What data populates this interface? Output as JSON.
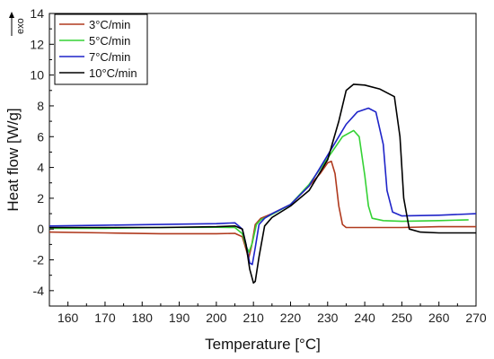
{
  "chart_data": {
    "type": "line",
    "title": "",
    "xlabel": "Temperature [°C]",
    "ylabel": "Heat flow [W/g]",
    "exo_label": "exo",
    "xlim": [
      155,
      270
    ],
    "ylim": [
      -5,
      14
    ],
    "x_ticks": [
      160,
      170,
      180,
      190,
      200,
      210,
      220,
      230,
      240,
      250,
      260,
      270
    ],
    "y_ticks": [
      -4,
      -2,
      0,
      2,
      4,
      6,
      8,
      10,
      12,
      14
    ],
    "grid": false,
    "legend_position": "top-left",
    "series": [
      {
        "name": "3°C/min",
        "color": "#b03a1e",
        "points": [
          [
            155,
            -0.2
          ],
          [
            170,
            -0.25
          ],
          [
            185,
            -0.3
          ],
          [
            200,
            -0.3
          ],
          [
            205,
            -0.28
          ],
          [
            207,
            -0.5
          ],
          [
            208,
            -1.3
          ],
          [
            208.7,
            -1.9
          ],
          [
            209.5,
            -1.1
          ],
          [
            210.5,
            0.3
          ],
          [
            212,
            0.7
          ],
          [
            215,
            1.0
          ],
          [
            220,
            1.6
          ],
          [
            225,
            2.8
          ],
          [
            228,
            3.6
          ],
          [
            230,
            4.3
          ],
          [
            231,
            4.4
          ],
          [
            232,
            3.6
          ],
          [
            233,
            1.5
          ],
          [
            234,
            0.3
          ],
          [
            235,
            0.1
          ],
          [
            240,
            0.1
          ],
          [
            250,
            0.1
          ],
          [
            260,
            0.15
          ],
          [
            270,
            0.15
          ]
        ]
      },
      {
        "name": "5°C/min",
        "color": "#35d235",
        "points": [
          [
            155,
            0.05
          ],
          [
            170,
            0.05
          ],
          [
            185,
            0.1
          ],
          [
            200,
            0.12
          ],
          [
            205,
            0.1
          ],
          [
            207,
            -0.3
          ],
          [
            208,
            -1.1
          ],
          [
            208.8,
            -1.5
          ],
          [
            209.7,
            -0.9
          ],
          [
            210.8,
            0.3
          ],
          [
            212,
            0.6
          ],
          [
            215,
            0.95
          ],
          [
            220,
            1.6
          ],
          [
            225,
            2.9
          ],
          [
            230,
            4.6
          ],
          [
            234,
            6.0
          ],
          [
            237,
            6.4
          ],
          [
            238.5,
            6.0
          ],
          [
            240,
            3.5
          ],
          [
            241,
            1.5
          ],
          [
            242,
            0.7
          ],
          [
            245,
            0.55
          ],
          [
            250,
            0.5
          ],
          [
            260,
            0.55
          ],
          [
            268,
            0.6
          ]
        ]
      },
      {
        "name": "7°C/min",
        "color": "#1f24c8",
        "points": [
          [
            155,
            0.2
          ],
          [
            170,
            0.25
          ],
          [
            185,
            0.3
          ],
          [
            200,
            0.35
          ],
          [
            205,
            0.4
          ],
          [
            207,
            0.0
          ],
          [
            208,
            -1.0
          ],
          [
            209,
            -2.2
          ],
          [
            209.7,
            -2.3
          ],
          [
            210.5,
            -1.2
          ],
          [
            211.5,
            0.3
          ],
          [
            213,
            0.7
          ],
          [
            215,
            1.0
          ],
          [
            220,
            1.6
          ],
          [
            225,
            2.8
          ],
          [
            230,
            4.8
          ],
          [
            235,
            6.8
          ],
          [
            238,
            7.6
          ],
          [
            241,
            7.85
          ],
          [
            243,
            7.6
          ],
          [
            245,
            5.5
          ],
          [
            246,
            2.5
          ],
          [
            247.5,
            1.1
          ],
          [
            250,
            0.85
          ],
          [
            260,
            0.9
          ],
          [
            270,
            1.0
          ]
        ]
      },
      {
        "name": "10°C/min",
        "color": "#000000",
        "points": [
          [
            155,
            0.1
          ],
          [
            170,
            0.1
          ],
          [
            185,
            0.1
          ],
          [
            200,
            0.15
          ],
          [
            205,
            0.2
          ],
          [
            207,
            0.0
          ],
          [
            208,
            -1.0
          ],
          [
            209,
            -2.6
          ],
          [
            210,
            -3.5
          ],
          [
            210.5,
            -3.4
          ],
          [
            211.5,
            -1.8
          ],
          [
            213,
            0.2
          ],
          [
            215,
            0.75
          ],
          [
            220,
            1.5
          ],
          [
            225,
            2.5
          ],
          [
            230,
            4.5
          ],
          [
            233,
            7.0
          ],
          [
            235,
            9.0
          ],
          [
            237,
            9.4
          ],
          [
            240,
            9.35
          ],
          [
            244,
            9.1
          ],
          [
            248,
            8.6
          ],
          [
            249.5,
            6.0
          ],
          [
            250.5,
            2.0
          ],
          [
            252,
            0.0
          ],
          [
            255,
            -0.2
          ],
          [
            260,
            -0.25
          ],
          [
            270,
            -0.25
          ]
        ]
      }
    ]
  }
}
